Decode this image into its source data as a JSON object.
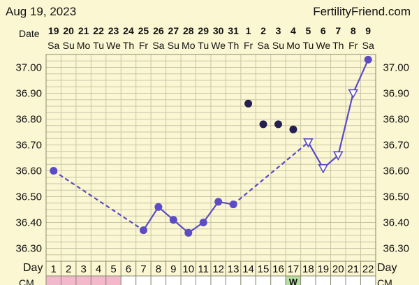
{
  "header": {
    "date": "Aug 19, 2023",
    "site": "FertilityFriend.com"
  },
  "labels": {
    "date_row": "Date",
    "day_row": "Day",
    "cm_row": "CM"
  },
  "colors": {
    "line": "#5b4bc4",
    "dot_dark": "#252050",
    "grid": "#c9c6a8",
    "period": "#f3b8cc",
    "cm_w": "#b6e0a2"
  },
  "chart_data": {
    "type": "line",
    "title": "",
    "xlabel": "",
    "ylabel": "",
    "ylim": [
      36.25,
      37.05
    ],
    "y_ticks": [
      "37.00",
      "36.90",
      "36.80",
      "36.70",
      "36.60",
      "36.50",
      "36.40",
      "36.30"
    ],
    "grid": true,
    "dates": [
      "19",
      "20",
      "21",
      "22",
      "23",
      "24",
      "25",
      "26",
      "27",
      "28",
      "29",
      "30",
      "31",
      "1",
      "2",
      "3",
      "4",
      "5",
      "6",
      "7",
      "8",
      "9"
    ],
    "weekdays": [
      "Sa",
      "Su",
      "Mo",
      "Tu",
      "We",
      "Th",
      "Fr",
      "Sa",
      "Su",
      "Mo",
      "Tu",
      "We",
      "Th",
      "Fr",
      "Sa",
      "Su",
      "Mo",
      "Tu",
      "We",
      "Th",
      "Fr",
      "Sa"
    ],
    "cycle_days": [
      "1",
      "2",
      "3",
      "4",
      "5",
      "6",
      "7",
      "8",
      "9",
      "10",
      "11",
      "12",
      "13",
      "14",
      "15",
      "16",
      "17",
      "18",
      "19",
      "20",
      "21",
      "22"
    ],
    "temps": [
      {
        "day": 1,
        "temp": 36.6,
        "kind": "circle"
      },
      {
        "day": 7,
        "temp": 36.37,
        "kind": "circle"
      },
      {
        "day": 8,
        "temp": 36.46,
        "kind": "circle"
      },
      {
        "day": 9,
        "temp": 36.41,
        "kind": "circle"
      },
      {
        "day": 10,
        "temp": 36.36,
        "kind": "circle"
      },
      {
        "day": 11,
        "temp": 36.4,
        "kind": "circle"
      },
      {
        "day": 12,
        "temp": 36.48,
        "kind": "circle"
      },
      {
        "day": 13,
        "temp": 36.47,
        "kind": "circle"
      },
      {
        "day": 18,
        "temp": 36.71,
        "kind": "triangle"
      },
      {
        "day": 19,
        "temp": 36.61,
        "kind": "triangle"
      },
      {
        "day": 20,
        "temp": 36.66,
        "kind": "triangle"
      },
      {
        "day": 21,
        "temp": 36.9,
        "kind": "triangle"
      },
      {
        "day": 22,
        "temp": 37.03,
        "kind": "circle"
      }
    ],
    "dashed_segments": [
      [
        1,
        7
      ],
      [
        13,
        18
      ]
    ],
    "solid_segments": [
      [
        7,
        13
      ],
      [
        18,
        22
      ]
    ],
    "excluded_temps": [
      {
        "day": 14,
        "temp": 36.86
      },
      {
        "day": 15,
        "temp": 36.78
      },
      {
        "day": 16,
        "temp": 36.78
      },
      {
        "day": 17,
        "temp": 36.76
      }
    ],
    "period_days": [
      1,
      2,
      3,
      4,
      5
    ],
    "cm_marks": [
      {
        "day": 17,
        "label": "W"
      }
    ]
  }
}
